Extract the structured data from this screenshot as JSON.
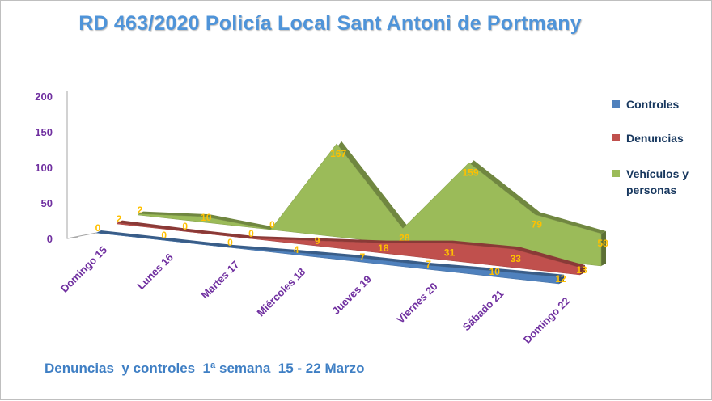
{
  "chart_data": {
    "type": "area",
    "title": "RD 463/2020 Policía Local Sant Antoni de Portmany",
    "subtitle": "Denuncias  y controles  1ª semana  15 - 22 Marzo",
    "categories": [
      "Domingo 15",
      "Lunes 16",
      "Martes 17",
      "Miércoles 18",
      "Jueves 19",
      "Viernes 20",
      "Sábado 21",
      "Domingo 22"
    ],
    "series": [
      {
        "name": "Controles",
        "values": [
          0,
          0,
          0,
          4,
          7,
          7,
          10,
          12
        ],
        "color": "#4f81bd"
      },
      {
        "name": "Denuncias",
        "values": [
          2,
          0,
          0,
          9,
          18,
          31,
          33,
          13
        ],
        "color": "#c0504d"
      },
      {
        "name": "Vehículos y personas",
        "values": [
          2,
          10,
          0,
          167,
          28,
          159,
          79,
          58
        ],
        "color": "#9bbb59"
      }
    ],
    "yticks": [
      0,
      50,
      100,
      150,
      200
    ],
    "ylim": [
      0,
      200
    ],
    "label_color": "#ffc000",
    "axis_label_color": "#7030a0",
    "legend_position": "right",
    "grid": false
  }
}
